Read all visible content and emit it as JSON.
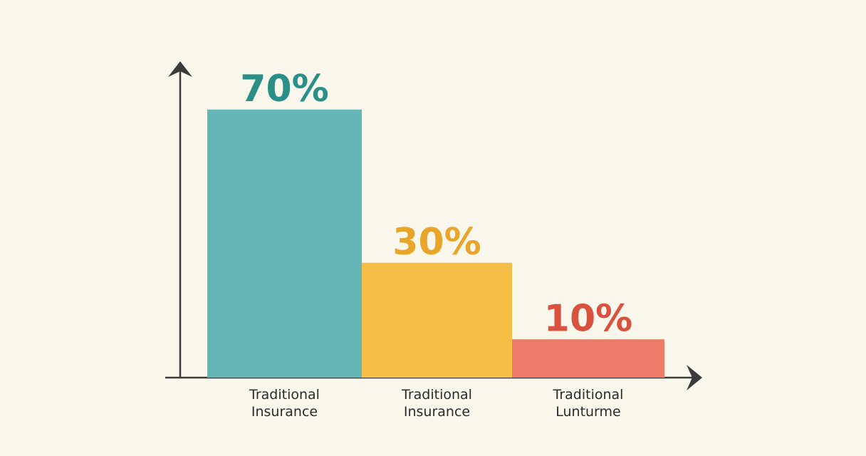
{
  "chart_data": {
    "type": "bar",
    "categories": [
      "Traditional Insurance",
      "Traditional Insurance",
      "Traditional Lunturme"
    ],
    "values": [
      70,
      30,
      10
    ],
    "value_labels": [
      "70%",
      "30%",
      "10%"
    ],
    "colors": [
      "#64b7b6",
      "#f6bd47",
      "#ee7a67"
    ],
    "label_colors": [
      "#2a8f86",
      "#e9a52a",
      "#d9513f"
    ],
    "ylim": [
      0,
      80
    ]
  }
}
